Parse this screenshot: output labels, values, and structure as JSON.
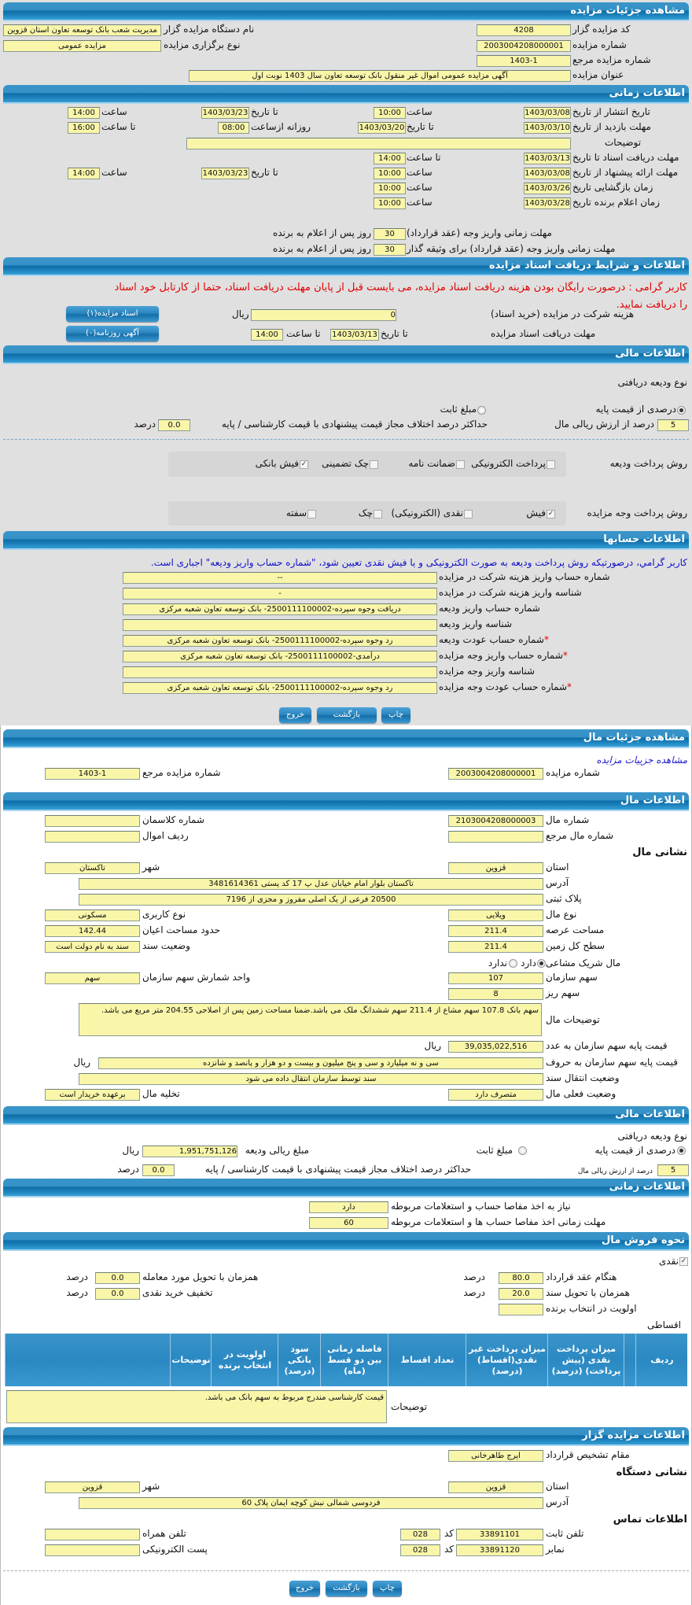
{
  "colors": {
    "header": "#1f7fbb",
    "field": "#f9f6a9",
    "warning": "#e00000",
    "note": "#1010c8",
    "background": "#e0e0e0"
  },
  "auction": {
    "title": "مشاهده جزئیات مزایده",
    "code_label": "کد مزایده گزار",
    "code": "4208",
    "org_label": "نام دستگاه مزایده گزار",
    "org": "مدیریت شعب بانک توسعه تعاون استان قزوین",
    "number_label": "شماره مزایده",
    "number": "2003004208000001",
    "type_label": "نوع برگزاری مزایده",
    "type": "مزایده عمومی",
    "ref_label": "شماره مزایده مرجع",
    "ref": "1403-1",
    "subject_label": "عنوان مزایده",
    "subject": "آگهی مزایده عمومی اموال غیر منقول بانک توسعه تعاون  سال 1403 نوبت اول"
  },
  "timing": {
    "title": "اطلاعات زمانی",
    "time_label": "ساعت",
    "to_date_label": "تا تاریخ",
    "to_time_label": "تا ساعت",
    "publish_label": "تاریخ انتشار از تاریخ",
    "publish_from": "1403/03/08",
    "publish_from_time": "10:00",
    "publish_to": "1403/03/23",
    "publish_to_time": "14:00",
    "visit_label": "مهلت بازدید از تاریخ",
    "visit_from": "1403/03/10",
    "visit_to": "1403/03/20",
    "daily_from_label": "روزانه ازساعت",
    "visit_daily_from": "08:00",
    "visit_daily_to": "16:00",
    "notes_label": "توضیحات",
    "notes": "",
    "docs_label": "مهلت دریافت اسناد تا تاریخ",
    "docs_to": "1403/03/13",
    "docs_to_time": "14:00",
    "offer_label": "مهلت ارائه پیشنهاد از تاریخ",
    "offer_from": "1403/03/08",
    "offer_from_time": "10:00",
    "offer_to": "1403/03/23",
    "offer_to_time": "14:00",
    "opening_label": "زمان بازگشایی   تاریخ",
    "opening_date": "1403/03/26",
    "opening_time": "10:00",
    "winner_label": "زمان اعلام برنده   تاریخ",
    "winner_date": "1403/03/28",
    "winner_time": "10:00",
    "payment_label": "مهلت زمانی واریز وجه (عقد قرارداد)",
    "payment_days": "30",
    "days_suffix": "روز پس از اعلام به برنده",
    "payment_guarantor_label": "مهلت زمانی واریز وجه (عقد قرارداد) برای وثیقه گذار",
    "payment_guarantor_days": "30"
  },
  "docs": {
    "title": "اطلاعات و شرایط دریافت اسناد مزایده",
    "warning": "کاربر گرامی : درصورت رایگان بودن هزینه دریافت اسناد مزایده، می بایست قبل از پایان مهلت دریافت اسناد، حتما از کارتابل خود اسناد را دریافت نمایید.",
    "fee_label": "هزینه شرکت در مزایده (خرید اسناد)",
    "fee": "0",
    "rial": "ریال",
    "deadline_label": "مهلت دریافت اسناد مزایده",
    "deadline_date": "1403/03/13",
    "deadline_time": "14:00",
    "docs_button": "اسناد مزایده(۱)",
    "newspaper_button": "آگهی روزنامه(۰)"
  },
  "financial": {
    "title": "اطلاعات مالی",
    "deposit_type_label": "نوع ودیعه دریافتی",
    "percent_option": "درصدی از قیمت پایه",
    "fixed_option": "مبلغ ثابت",
    "selected": "percent",
    "percent_value": "5",
    "percent_suffix": "درصد از ارزش ریالی مال",
    "max_diff_label": "حداکثر درصد اختلاف مجاز قیمت پیشنهادی با قیمت کارشناسی / پایه",
    "max_diff": "0.0",
    "percent_unit": "درصد",
    "deposit_methods_label": "روش پرداخت ودیعه",
    "deposit_methods": [
      {
        "label": "پرداخت الکترونیکی",
        "checked": false
      },
      {
        "label": "ضمانت نامه",
        "checked": false
      },
      {
        "label": "چک تضمینی",
        "checked": false
      },
      {
        "label": "فیش بانکی",
        "checked": true
      }
    ],
    "auction_payment_label": "روش پرداخت وجه مزایده",
    "auction_payment_methods": [
      {
        "label": "فیش",
        "checked": true
      },
      {
        "label": "نقدی (الکترونیکی)",
        "checked": false
      },
      {
        "label": "چک",
        "checked": false
      },
      {
        "label": "سفته",
        "checked": false
      }
    ]
  },
  "accounts": {
    "title": "اطلاعات حسابها",
    "note": "کاربر گرامي، درصورتيکه روش پرداخت وديعه به صورت الکترونيکی و يا فيش نقدی تعيين شود، \"شماره حساب واريز وديعه\" اجباری است.",
    "rows": [
      {
        "label": "شماره حساب واریز هزینه شرکت در مزایده",
        "value": "--",
        "required": false
      },
      {
        "label": "شناسه واریز هزینه شرکت در مزایده",
        "value": "-",
        "required": false
      },
      {
        "label": "شماره حساب واریز ودیعه",
        "value": "دریافت وجوه سپرده-2500111100002- بانک توسعه تعاون شعبه مرکزی",
        "required": false
      },
      {
        "label": "شناسه واریز ودیعه",
        "value": "",
        "required": false
      },
      {
        "label": "شماره حساب عودت ودیعه",
        "value": "رد وجوه سپرده-2500111100002- بانک توسعه تعاون شعبه مرکزی",
        "required": true
      },
      {
        "label": "شماره حساب واریز وجه مزایده",
        "value": "درآمدی-2500111100002- بانک توسعه تعاون شعبه مرکزی",
        "required": true
      },
      {
        "label": "شناسه واریز وجه مزایده",
        "value": "",
        "required": false
      },
      {
        "label": "شماره حساب عودت وجه مزایده",
        "value": "رد وجوه سپرده-2500111100002- بانک توسعه تعاون شعبه مرکزی",
        "required": true
      }
    ]
  },
  "buttons": {
    "print": "چاپ",
    "back": "بازگشت",
    "exit": "خروج"
  },
  "property": {
    "title": "مشاهده جزئیات مال",
    "link": "مشاهده جزییات مزایده",
    "auction_number_label": "شماره مزایده",
    "auction_number": "2003004208000001",
    "ref_label": "شماره مزایده مرجع",
    "ref": "1403-1",
    "info": {
      "title": "اطلاعات مال",
      "number_label": "شماره مال",
      "number": "2103004208000003",
      "classman_label": "شماره کلاسمان",
      "classman": "",
      "ref_label": "شماره مال مرجع",
      "ref": "",
      "row_label": "ردیف اموال",
      "row": "",
      "address_heading": "نشانی مال",
      "province_label": "استان",
      "province": "قزوین",
      "city_label": "شهر",
      "city": "تاکستان",
      "address_label": "آدرس",
      "address": "تاکستان بلوار امام خیابان عدل پ  17 کد پستی 3481614361",
      "plate_label": "پلاک ثبتی",
      "plate": "20500 فرعی از یک اصلی مفروز و مجزی از 7196",
      "kind_label": "نوع مال",
      "kind": "ویلایی",
      "usage_label": "نوع کاربری",
      "usage": "مسکونی",
      "land_area_label": "مساحت عرصه",
      "land_area": "211.4",
      "building_area_label": "حدود مساحت اعیان",
      "building_area": "142.44",
      "total_land_label": "سطح کل زمین",
      "total_land": "211.4",
      "deed_label": "وضعیت سند",
      "deed": "سند به نام دولت است",
      "shared_label": "مال شریک مشاعی",
      "shared_yes": "دارد",
      "shared_no": "ندارد",
      "shared": "yes",
      "share_label": "سهم سازمان",
      "share": "107",
      "share_unit_label": "واحد شمارش سهم سازمان",
      "share_unit": "سهم",
      "sub_share_label": "سهم ریز",
      "sub_share": "8",
      "description_label": "توضیحات مال",
      "description": "سهم بانک 107.8 سهم مشاع از 211.4 سهم ششدانگ ملک می باشد.ضمنا مساحت زمین پس از اصلاحی 204.55 متر مربع می باشد.",
      "price_num_label": "قیمت پایه سهم سازمان به عدد",
      "price_num": "39,035,022,516",
      "price_words_label": "قیمت پایه سهم سازمان به حروف",
      "price_words": "سی و نه میلیارد و سی و پنج میلیون و بیست و دو هزار و پانصد و شانزده",
      "transfer_label": "وضعیت انتقال سند",
      "transfer": "سند توسط سازمان انتقال داده می شود",
      "status_label": "وضعیت فعلی مال",
      "status": "متصرف دارد",
      "evacuation_label": "تخلیه مال",
      "evacuation": "برعهده خریدار است"
    },
    "financial": {
      "title": "اطلاعات مالی",
      "selected": "percent",
      "percent_value": "5",
      "deposit_amount_label": "مبلغ ریالی ودیعه",
      "deposit_amount": "1,951,751,126",
      "max_diff": "0.0"
    },
    "timing": {
      "title": "اطلاعات زمانی",
      "clearance_label": "نیاز به اخذ مفاصا حساب و استعلامات مربوطه",
      "clearance": "دارد",
      "clearance_deadline_label": "مهلت زمانی اخذ مفاصا حساب ها و استعلامات مربوطه",
      "clearance_deadline": "60"
    },
    "sale": {
      "title": "نحوه فروش مال",
      "cash_label": "نقدی",
      "cash_checked": true,
      "at_contract_label": "هنگام عقد قرارداد",
      "at_contract": "80.0",
      "at_delivery_label": "همزمان با تحویل مورد معامله",
      "at_delivery": "0.0",
      "at_deed_label": "همزمان با تحویل سند",
      "at_deed": "20.0",
      "cash_discount_label": "تخفیف خرید نقدی",
      "cash_discount": "0.0",
      "priority_label": "اولویت در انتخاب برنده",
      "priority": "",
      "installment_label": "اقساطی",
      "table_headers": [
        "ردیف",
        "",
        "میزان پرداخت نقدی (پیش پرداخت) (درصد)",
        "میزان پرداخت غیر نقدی(اقساط) (درصد)",
        "تعداد اقساط",
        "فاصله زمانی بین دو قسط (ماه)",
        "سود بانکی (درصد)",
        "اولویت در انتخاب برنده",
        "توضیحات",
        ""
      ],
      "notes_label": "توضیحات",
      "notes": "قیمت کارشناسی مندرج مربوط به سهم بانک می باشد."
    },
    "seller": {
      "title": "اطلاعات مزایده گزار",
      "authority_label": "مقام تشخیص قرارداد",
      "authority": "ایرج طاهرخانی",
      "address_heading": "نشانی دستگاه",
      "province": "قزوین",
      "city": "قزوین",
      "address": "فردوسی شمالی نبش کوچه ایمان پلاک 60",
      "contact_heading": "اطلاعات تماس",
      "phone_label": "تلفن ثابت",
      "phone": "33891101",
      "code_label": "کد",
      "phone_code": "028",
      "mobile_label": "تلفن همراه",
      "mobile": "",
      "fax_label": "نمابر",
      "fax": "33891120",
      "fax_code": "028",
      "email_label": "پست الکترونیکی",
      "email": ""
    }
  }
}
